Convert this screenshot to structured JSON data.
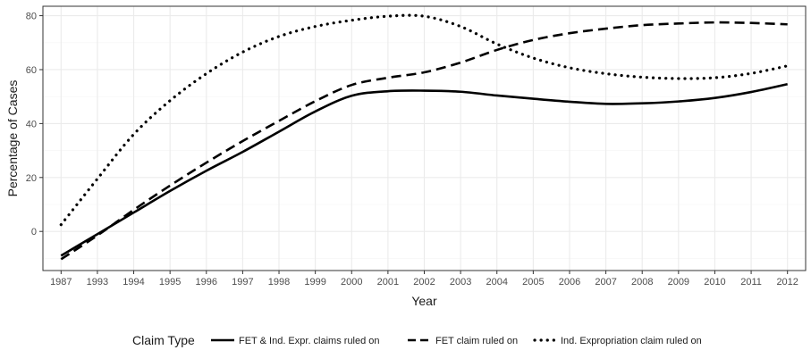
{
  "chart_data": {
    "type": "line",
    "xlabel": "Year",
    "ylabel": "Percentage of Cases",
    "categories": [
      "1987",
      "1993",
      "1994",
      "1995",
      "1996",
      "1997",
      "1998",
      "1999",
      "2000",
      "2001",
      "2002",
      "2003",
      "2004",
      "2005",
      "2006",
      "2007",
      "2008",
      "2009",
      "2010",
      "2011",
      "2012"
    ],
    "ylim": [
      -14.5,
      83.5
    ],
    "yticks": [
      0,
      20,
      40,
      60,
      80
    ],
    "grid": true,
    "legend": {
      "title": "Claim Type",
      "position": "bottom"
    },
    "series": [
      {
        "name": "FET & Ind. Expr. claims ruled on",
        "style": "solid",
        "values": [
          -9,
          -1,
          7,
          15,
          22.5,
          29.5,
          37,
          44.5,
          50.3,
          52,
          52.2,
          51.8,
          50.4,
          49.2,
          48.1,
          47.3,
          47.5,
          48.2,
          49.5,
          51.7,
          54.6
        ]
      },
      {
        "name": "FET claim ruled on",
        "style": "dashed",
        "values": [
          -10.3,
          -1.5,
          8,
          17,
          25.5,
          33.5,
          41,
          48.3,
          54.3,
          57,
          59,
          62.6,
          67.3,
          71,
          73.5,
          75.2,
          76.5,
          77.1,
          77.5,
          77.3,
          76.8
        ]
      },
      {
        "name": "Ind. Expropriation claim ruled on",
        "style": "dotted",
        "values": [
          2.5,
          19.5,
          36,
          48.5,
          58.5,
          66.5,
          72.3,
          76,
          78.3,
          79.8,
          79.8,
          76,
          69.5,
          64.3,
          60.7,
          58.5,
          57.2,
          56.7,
          57,
          58.6,
          61.4
        ]
      }
    ],
    "colors": {
      "panel_background": "#ffffff",
      "panel_border": "#333333",
      "grid_major": "#ebebeb",
      "grid_minor": "#f5f5f5",
      "line": "#000000"
    }
  }
}
